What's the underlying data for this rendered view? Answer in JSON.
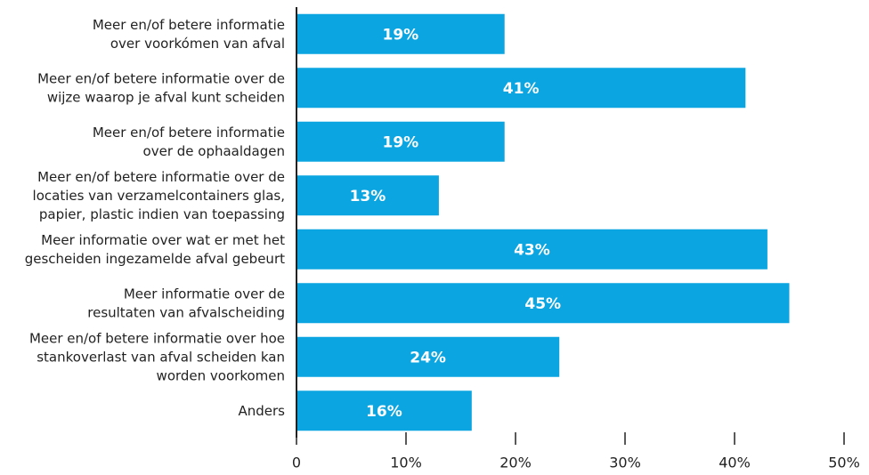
{
  "chart_data": {
    "type": "barh",
    "categories": [
      "Meer en/of betere informatie\nover voorkómen van afval",
      "Meer en/of betere informatie over de\nwijze waarop je afval kunt scheiden",
      "Meer en/of betere informatie\nover de ophaaldagen",
      "Meer en/of betere informatie over de\nlocaties van verzamelcontainers glas,\npapier, plastic indien van toepassing",
      "Meer informatie over wat er met het\ngescheiden ingezamelde afval gebeurt",
      "Meer informatie over de\nresultaten van afvalscheiding",
      "Meer en/of betere informatie over hoe\nstankoverlast van afval scheiden kan\nworden voorkomen",
      "Anders"
    ],
    "values": [
      19,
      41,
      19,
      13,
      43,
      45,
      24,
      16
    ],
    "value_labels": [
      "19%",
      "41%",
      "19%",
      "13%",
      "43%",
      "45%",
      "24%",
      "16%"
    ],
    "color": "#0ba5e1",
    "xlim": [
      0,
      50
    ],
    "xticks": [
      0,
      {
        "value": 10,
        "label": "10%"
      },
      {
        "value": 20,
        "label": "20%"
      },
      {
        "value": 30,
        "label": "30%"
      },
      {
        "value": 40,
        "label": "40%"
      },
      {
        "value": 50,
        "label": "50%"
      }
    ]
  }
}
